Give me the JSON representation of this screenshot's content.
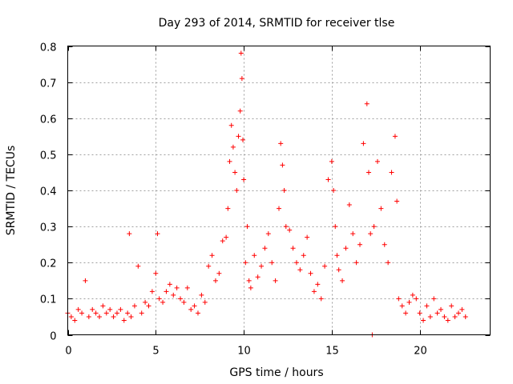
{
  "chart_data": {
    "type": "scatter",
    "title": "Day 293 of 2014, SRMTID for receiver tlse",
    "xlabel": "GPS time / hours",
    "ylabel": "SRMTID / TECUs",
    "xlim": [
      0,
      24
    ],
    "ylim": [
      0,
      0.8
    ],
    "xticks": [
      0,
      5,
      10,
      15,
      20
    ],
    "xtick_labels": [
      "0",
      "5",
      "10",
      "15",
      "20"
    ],
    "yticks": [
      0,
      0.1,
      0.2,
      0.3,
      0.4,
      0.5,
      0.6,
      0.7,
      0.8
    ],
    "ytick_labels": [
      "0",
      "0.1",
      "0.2",
      "0.3",
      "0.4",
      "0.5",
      "0.6",
      "0.7",
      "0.8"
    ],
    "grid": true,
    "marker": "plus",
    "color": "#ff0000",
    "series": [
      {
        "name": "SRMTID",
        "x": [
          0.0,
          0.2,
          0.4,
          0.6,
          0.8,
          1.0,
          1.2,
          1.4,
          1.6,
          1.8,
          2.0,
          2.2,
          2.4,
          2.6,
          2.8,
          3.0,
          3.2,
          3.4,
          3.5,
          3.6,
          3.8,
          4.0,
          4.2,
          4.4,
          4.6,
          4.8,
          5.0,
          5.1,
          5.2,
          5.4,
          5.6,
          5.8,
          6.0,
          6.2,
          6.4,
          6.6,
          6.8,
          7.0,
          7.2,
          7.4,
          7.6,
          7.8,
          8.0,
          8.2,
          8.4,
          8.6,
          8.8,
          9.0,
          9.1,
          9.2,
          9.3,
          9.4,
          9.5,
          9.6,
          9.7,
          9.8,
          9.85,
          9.9,
          9.95,
          10.0,
          10.1,
          10.2,
          10.3,
          10.4,
          10.6,
          10.8,
          11.0,
          11.2,
          11.4,
          11.6,
          11.8,
          12.0,
          12.1,
          12.2,
          12.3,
          12.4,
          12.6,
          12.8,
          13.0,
          13.2,
          13.4,
          13.6,
          13.8,
          14.0,
          14.2,
          14.4,
          14.6,
          14.8,
          15.0,
          15.1,
          15.2,
          15.3,
          15.4,
          15.6,
          15.8,
          16.0,
          16.2,
          16.4,
          16.6,
          16.8,
          17.0,
          17.1,
          17.2,
          17.3,
          17.4,
          17.6,
          17.8,
          18.0,
          18.2,
          18.4,
          18.6,
          18.7,
          18.8,
          19.0,
          19.2,
          19.4,
          19.6,
          19.8,
          20.0,
          20.2,
          20.4,
          20.6,
          20.8,
          21.0,
          21.2,
          21.4,
          21.6,
          21.8,
          22.0,
          22.2,
          22.4,
          22.6
        ],
        "values": [
          0.06,
          0.05,
          0.04,
          0.07,
          0.06,
          0.15,
          0.05,
          0.07,
          0.06,
          0.05,
          0.08,
          0.06,
          0.07,
          0.05,
          0.06,
          0.07,
          0.04,
          0.06,
          0.28,
          0.05,
          0.08,
          0.19,
          0.06,
          0.09,
          0.08,
          0.12,
          0.17,
          0.28,
          0.1,
          0.09,
          0.12,
          0.14,
          0.11,
          0.13,
          0.1,
          0.09,
          0.13,
          0.07,
          0.08,
          0.06,
          0.11,
          0.09,
          0.19,
          0.22,
          0.15,
          0.17,
          0.26,
          0.27,
          0.35,
          0.48,
          0.58,
          0.52,
          0.45,
          0.4,
          0.55,
          0.62,
          0.78,
          0.71,
          0.54,
          0.43,
          0.2,
          0.3,
          0.15,
          0.13,
          0.22,
          0.16,
          0.19,
          0.24,
          0.28,
          0.2,
          0.15,
          0.35,
          0.53,
          0.47,
          0.4,
          0.3,
          0.29,
          0.24,
          0.2,
          0.18,
          0.22,
          0.27,
          0.17,
          0.12,
          0.14,
          0.1,
          0.19,
          0.43,
          0.48,
          0.4,
          0.3,
          0.22,
          0.18,
          0.15,
          0.24,
          0.36,
          0.28,
          0.2,
          0.25,
          0.53,
          0.64,
          0.45,
          0.28,
          0.0,
          0.3,
          0.48,
          0.35,
          0.25,
          0.2,
          0.45,
          0.55,
          0.37,
          0.1,
          0.08,
          0.06,
          0.09,
          0.11,
          0.1,
          0.06,
          0.04,
          0.08,
          0.05,
          0.1,
          0.06,
          0.07,
          0.05,
          0.04,
          0.08,
          0.05,
          0.06,
          0.07,
          0.05
        ]
      }
    ]
  }
}
